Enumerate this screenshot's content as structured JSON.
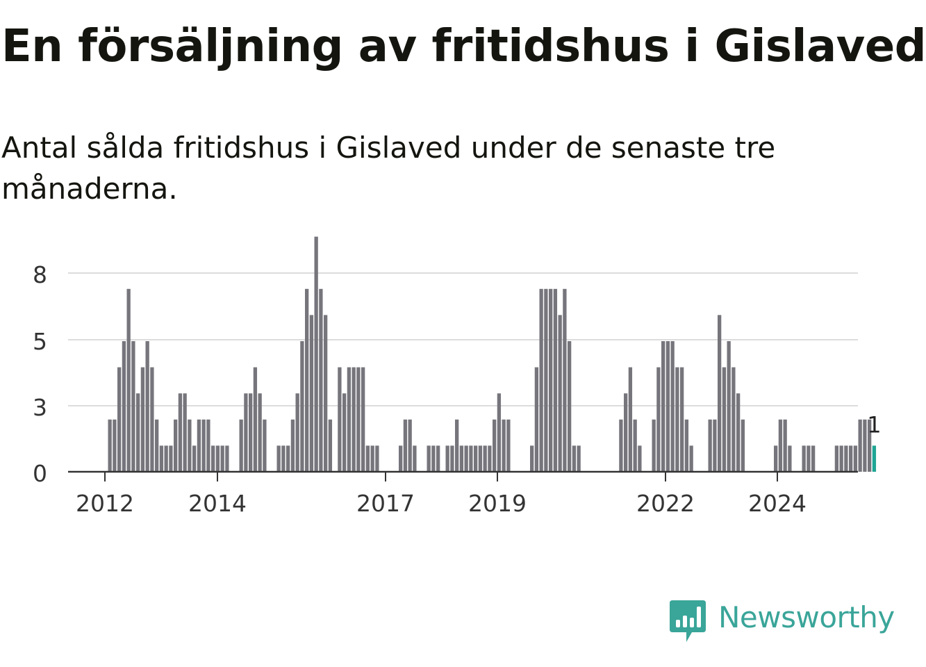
{
  "header": {
    "title": "En försäljning av fritidshus i Gislaved",
    "subtitle": "Antal sålda fritidshus i Gislaved under de senaste tre månaderna."
  },
  "brand": {
    "name": "Newsworthy",
    "icon": "newsworthy-bar-chart-icon",
    "color": "#3aa599"
  },
  "chart_data": {
    "type": "bar",
    "title": "",
    "xlabel": "",
    "ylabel": "",
    "ylim": [
      0,
      9.5
    ],
    "yticks": [
      "0",
      "3",
      "5",
      "8"
    ],
    "xticks": [
      "2012",
      "2014",
      "2017",
      "2019",
      "2022",
      "2024"
    ],
    "grid": true,
    "bar_color": "#76757c",
    "highlight_color": "#20a594",
    "annotation": {
      "text": "1",
      "target": "last"
    },
    "series": [
      {
        "values": [
          2,
          2,
          4,
          5,
          7,
          5,
          3,
          4,
          5,
          4,
          2,
          1,
          1,
          1,
          2,
          3,
          3,
          2,
          1,
          2,
          2,
          2,
          1,
          1,
          1,
          1,
          0,
          0,
          2,
          3,
          3,
          4,
          3,
          2,
          0,
          0,
          1,
          1,
          1,
          2,
          3,
          5,
          7,
          6,
          9,
          7,
          6,
          2,
          0,
          4,
          3,
          4,
          4,
          4,
          4,
          1,
          1,
          1,
          0,
          0,
          0,
          0,
          1,
          2,
          2,
          1,
          0,
          0,
          1,
          1,
          1,
          0,
          1,
          1,
          2,
          1,
          1,
          1,
          1,
          1,
          1,
          1,
          2,
          3,
          2,
          2,
          0,
          0,
          0,
          0,
          1,
          4,
          7,
          7,
          7,
          7,
          6,
          7,
          5,
          1,
          1,
          0,
          0,
          0,
          0,
          0,
          0,
          0,
          0,
          2,
          3,
          4,
          2,
          1,
          0,
          0,
          2,
          4,
          5,
          5,
          5,
          4,
          4,
          2,
          1,
          0,
          0,
          0,
          2,
          2,
          6,
          4,
          5,
          4,
          3,
          2,
          0,
          0,
          0,
          0,
          0,
          0,
          1,
          2,
          2,
          1,
          0,
          0,
          1,
          1,
          1,
          0,
          0,
          0,
          0,
          1,
          1,
          1,
          1,
          1,
          2,
          2,
          2,
          1
        ]
      }
    ]
  }
}
